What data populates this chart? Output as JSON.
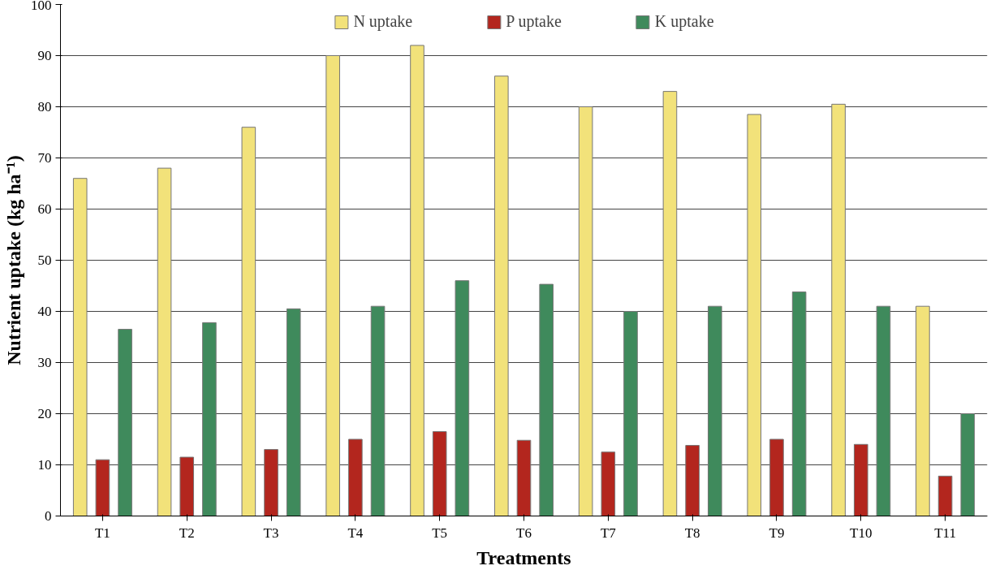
{
  "chart_data": {
    "type": "bar",
    "xlabel": "Treatments",
    "ylabel": "Nutrient uptake (kg ha⁻¹)",
    "categories": [
      "T1",
      "T2",
      "T3",
      "T4",
      "T5",
      "T6",
      "T7",
      "T8",
      "T9",
      "T10",
      "T11"
    ],
    "series": [
      {
        "name": "N uptake",
        "color": "#f2e27a",
        "values": [
          66,
          68,
          76,
          90,
          92,
          86,
          80,
          83,
          78.5,
          80.5,
          41
        ]
      },
      {
        "name": "P uptake",
        "color": "#b3261e",
        "values": [
          11,
          11.5,
          13,
          15,
          16.5,
          14.8,
          12.5,
          13.8,
          15,
          14,
          7.8
        ]
      },
      {
        "name": "K uptake",
        "color": "#3f8a5c",
        "values": [
          36.5,
          37.8,
          40.5,
          41,
          46,
          45.3,
          40,
          41,
          43.8,
          41,
          20
        ]
      }
    ],
    "ylim": [
      0,
      100
    ],
    "yticks": [
      0,
      10,
      20,
      30,
      40,
      50,
      60,
      70,
      80,
      90,
      100
    ],
    "grid": "y",
    "legend": "top"
  }
}
